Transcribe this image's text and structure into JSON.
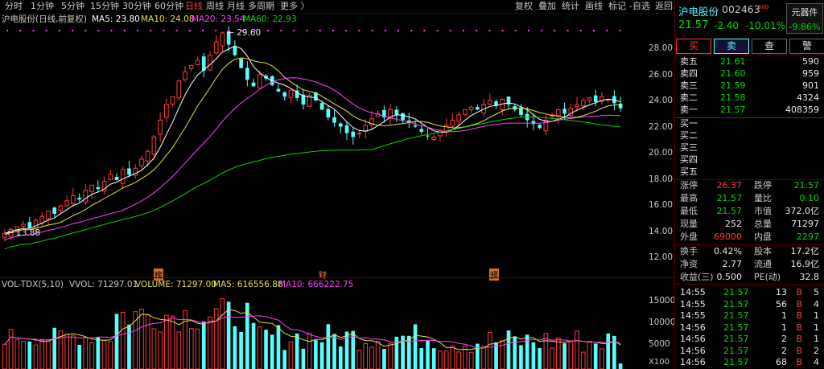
{
  "toolbar": {
    "tabs": [
      "分时",
      "1分钟",
      "5分钟",
      "15分钟",
      "30分钟",
      "60分钟",
      "日线",
      "周线",
      "月线",
      "多周期",
      "更多 〉"
    ],
    "active_tab": "日线",
    "right_tools": [
      "复权",
      "叠加",
      "统计",
      "画线",
      "标记",
      "-自选",
      "返回"
    ]
  },
  "main_legend": {
    "title": "沪电股份(日线,前复权)",
    "ma5": "MA5: 23.80",
    "ma10": "MA10: 24.08",
    "ma20": "MA20: 23.54",
    "ma60": "MA60: 22.93"
  },
  "annotations": {
    "high": "29.60",
    "low": "13.88",
    "marker_1": "榜",
    "marker_2": "财",
    "marker_3": "预"
  },
  "price_axis": [
    "28.00",
    "26.00",
    "24.00",
    "22.00",
    "20.00",
    "18.00",
    "16.00",
    "14.00",
    "12.00"
  ],
  "vol_legend": {
    "title": "VOL-TDX(5,10)",
    "vvol": "VVOL: 71297.01",
    "volume": "VOLUME: 71297.00",
    "ma5": "MA5: 616556.88",
    "ma10": "MA10: 666222.75"
  },
  "vol_axis": [
    "15000",
    "10000",
    "5000",
    "X100"
  ],
  "stock": {
    "name": "沪电股份",
    "code": "002463",
    "code_suffix": "500",
    "sector_btn": "元器件",
    "sector_pct": "-9.86%",
    "price": "21.57",
    "change": "-2.40",
    "change_pct": "-10.01%"
  },
  "trade_buttons": [
    "买",
    "卖",
    "查",
    "警"
  ],
  "asks": [
    {
      "label": "卖五",
      "price": "21.61",
      "vol": "590"
    },
    {
      "label": "卖四",
      "price": "21.60",
      "vol": "959"
    },
    {
      "label": "卖三",
      "price": "21.59",
      "vol": "901"
    },
    {
      "label": "卖二",
      "price": "21.58",
      "vol": "4324"
    },
    {
      "label": "卖一",
      "price": "21.57",
      "vol": "408359"
    }
  ],
  "bids": [
    {
      "label": "买一"
    },
    {
      "label": "买二"
    },
    {
      "label": "买三"
    },
    {
      "label": "买四"
    },
    {
      "label": "买五"
    }
  ],
  "stats": [
    {
      "l1": "涨停",
      "v1": "26.37",
      "c1": "red",
      "l2": "跌停",
      "v2": "21.57",
      "c2": "green"
    },
    {
      "l1": "最高",
      "v1": "21.57",
      "c1": "green",
      "l2": "量比",
      "v2": "0.10",
      "c2": "green"
    },
    {
      "l1": "最低",
      "v1": "21.57",
      "c1": "green",
      "l2": "市值",
      "v2": "372.0亿",
      "c2": "white"
    },
    {
      "l1": "现量",
      "v1": "252",
      "c1": "white",
      "l2": "总量",
      "v2": "71297",
      "c2": "white"
    },
    {
      "l1": "外盘",
      "v1": "69000",
      "c1": "red",
      "l2": "内盘",
      "v2": "2297",
      "c2": "green"
    }
  ],
  "fund": [
    {
      "l1": "换手",
      "v1": "0.42%",
      "l2": "股本",
      "v2": "17.2亿"
    },
    {
      "l1": "净资",
      "v1": "2.77",
      "l2": "流通",
      "v2": "16.9亿"
    },
    {
      "l1": "收益(三)",
      "v1": "0.500",
      "l2": "PE(动)",
      "v2": "32.8"
    }
  ],
  "ticks": [
    {
      "time": "14:55",
      "price": "21.57",
      "vol": "13",
      "bs": "B",
      "n": "5"
    },
    {
      "time": "14:55",
      "price": "21.57",
      "vol": "56",
      "bs": "B",
      "n": "4"
    },
    {
      "time": "14:55",
      "price": "21.57",
      "vol": "1",
      "bs": "B",
      "n": "1"
    },
    {
      "time": "14:56",
      "price": "21.57",
      "vol": "1",
      "bs": "B",
      "n": "1"
    },
    {
      "time": "14:56",
      "price": "21.57",
      "vol": "2",
      "bs": "B",
      "n": "1"
    },
    {
      "time": "14:56",
      "price": "21.57",
      "vol": "2",
      "bs": "B",
      "n": "2"
    },
    {
      "time": "14:56",
      "price": "21.57",
      "vol": "68",
      "bs": "B",
      "n": "4"
    }
  ],
  "colors": {
    "up": "#ff3a3a",
    "down": "#54ffff",
    "ma5": "#ffffff",
    "ma10": "#e8e040",
    "ma20": "#ff40ff",
    "ma60": "#00d800"
  }
}
